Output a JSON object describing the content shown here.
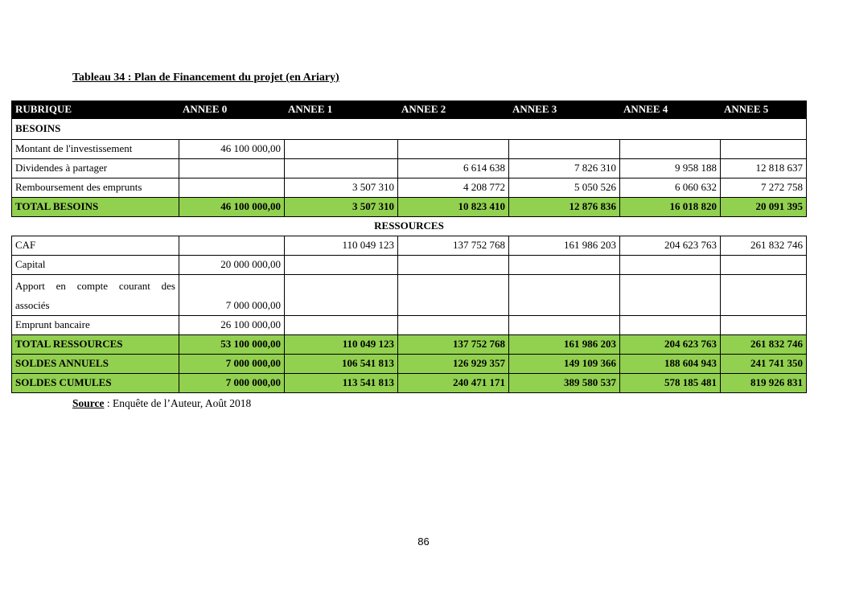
{
  "title": "Tableau 34 : Plan de Financement du projet (en Ariary)",
  "colors": {
    "header_bg": "#000000",
    "header_text": "#ffffff",
    "total_row_bg": "#92d050",
    "border": "#000000"
  },
  "table": {
    "header": [
      "RUBRIQUE",
      "ANNEE 0",
      "ANNEE 1",
      "ANNEE 2",
      "ANNEE 3",
      "ANNEE 4",
      "ANNEE 5"
    ],
    "rows": [
      {
        "type": "section",
        "label": "BESOINS",
        "values": []
      },
      {
        "type": "data",
        "label": "Montant de l'investissement",
        "values": [
          "46 100 000,00",
          "",
          "",
          "",
          "",
          ""
        ]
      },
      {
        "type": "data",
        "label": "Dividendes à partager",
        "values": [
          "",
          "",
          "6 614 638",
          "7 826 310",
          "9 958 188",
          "12 818 637"
        ]
      },
      {
        "type": "data",
        "label": "Remboursement des emprunts",
        "values": [
          "",
          "3 507 310",
          "4 208 772",
          "5 050 526",
          "6 060 632",
          "7 272 758"
        ]
      },
      {
        "type": "total",
        "label": "TOTAL BESOINS",
        "values": [
          "46 100 000,00",
          "3 507 310",
          "10 823 410",
          "12 876 836",
          "16 018 820",
          "20 091 395"
        ]
      },
      {
        "type": "section-center",
        "label": "RESSOURCES",
        "values": []
      },
      {
        "type": "data",
        "label": "CAF",
        "values": [
          "",
          "110 049 123",
          "137 752 768",
          "161 986 203",
          "204 623 763",
          "261 832 746"
        ]
      },
      {
        "type": "data",
        "label": "Capital",
        "values": [
          "20 000 000,00",
          "",
          "",
          "",
          "",
          ""
        ]
      },
      {
        "type": "data",
        "label": "Apport en compte courant des associés",
        "tall": true,
        "values": [
          "7 000 000,00",
          "",
          "",
          "",
          "",
          ""
        ]
      },
      {
        "type": "data",
        "label": "Emprunt bancaire",
        "values": [
          "26 100 000,00",
          "",
          "",
          "",
          "",
          ""
        ]
      },
      {
        "type": "total",
        "label": "TOTAL RESSOURCES",
        "values": [
          "53 100 000,00",
          "110 049 123",
          "137 752 768",
          "161 986 203",
          "204 623 763",
          "261 832 746"
        ]
      },
      {
        "type": "total",
        "label": "SOLDES ANNUELS",
        "values": [
          "7 000 000,00",
          "106 541 813",
          "126 929 357",
          "149 109 366",
          "188 604 943",
          "241 741 350"
        ]
      },
      {
        "type": "total",
        "label": "SOLDES CUMULES",
        "values": [
          "7 000 000,00",
          "113 541 813",
          "240 471 171",
          "389 580 537",
          "578 185 481",
          "819 926 831"
        ]
      }
    ]
  },
  "source": {
    "prefix": "Source",
    "rest": " : Enquête de l’Auteur, Août 2018"
  },
  "page_number": "86"
}
